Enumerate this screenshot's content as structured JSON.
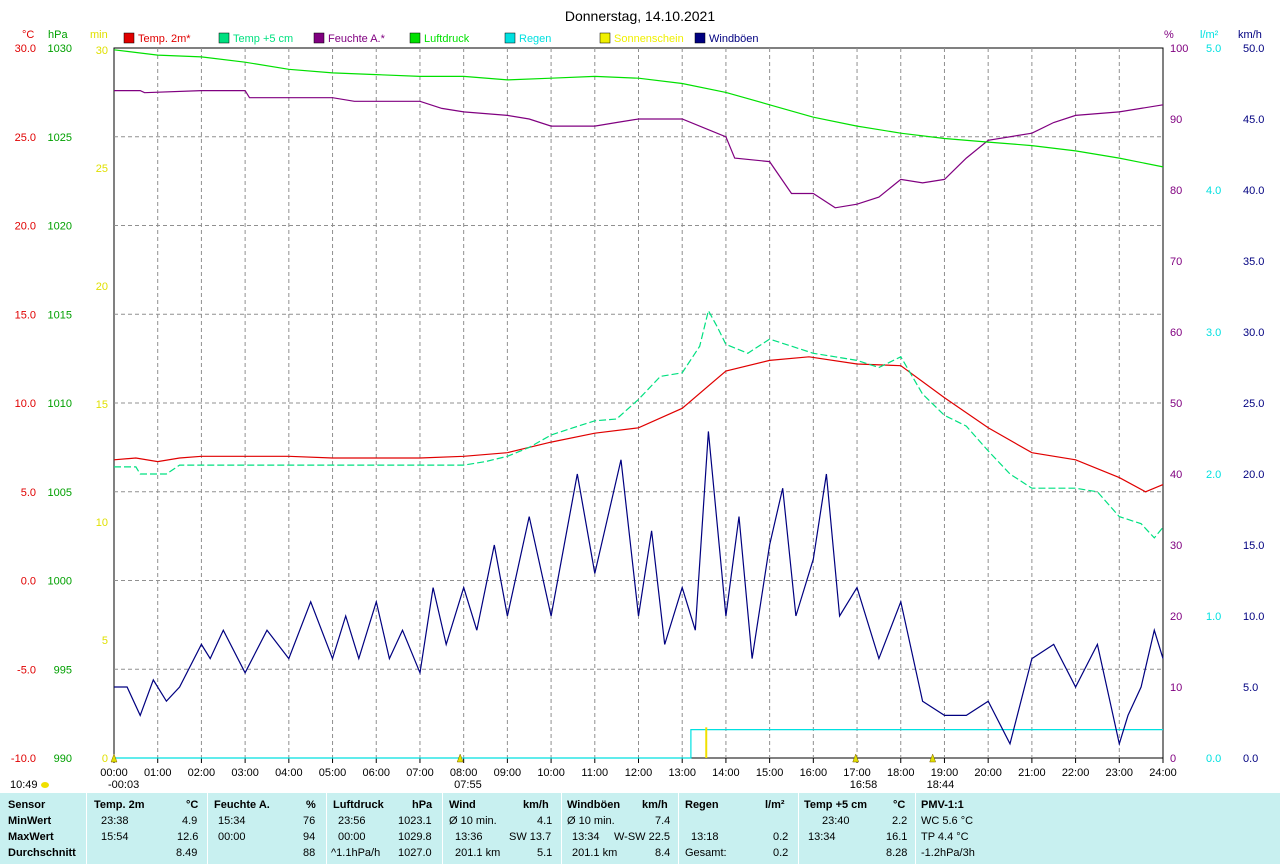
{
  "title": "Donnerstag, 14.10.2021",
  "legend": [
    {
      "label": "Temp. 2m*",
      "color": "#e00000"
    },
    {
      "label": "Temp +5 cm",
      "color": "#00e080"
    },
    {
      "label": "Feuchte A.*",
      "color": "#800080"
    },
    {
      "label": "Luftdruck",
      "color": "#00e000"
    },
    {
      "label": "Regen",
      "color": "#00e0e0"
    },
    {
      "label": "Sonnenschein",
      "color": "#f0f000"
    },
    {
      "label": "Windböen",
      "color": "#000080"
    }
  ],
  "axes": {
    "temp_unit": "°C",
    "pressure_unit": "hPa",
    "sun_unit": "min",
    "humidity_unit": "%",
    "rain_unit": "l/m²",
    "wind_unit": "km/h",
    "temp_ticks": [
      "30.0",
      "25.0",
      "20.0",
      "15.0",
      "10.0",
      "5.0",
      "0.0",
      "-5.0",
      "-10.0"
    ],
    "pressure_ticks": [
      "1030",
      "1025",
      "1020",
      "1015",
      "1010",
      "1005",
      "1000",
      "995",
      "990"
    ],
    "sun_ticks": [
      "30",
      "25",
      "20",
      "15",
      "10",
      "5",
      "0"
    ],
    "humidity_ticks": [
      "100",
      "90",
      "80",
      "70",
      "60",
      "50",
      "40",
      "30",
      "20",
      "10",
      "0"
    ],
    "rain_ticks": [
      "5.0",
      "4.0",
      "3.0",
      "2.0",
      "1.0",
      "0.0"
    ],
    "wind_ticks": [
      "50.0",
      "45.0",
      "40.0",
      "35.0",
      "30.0",
      "25.0",
      "20.0",
      "15.0",
      "10.0",
      "5.0",
      "0.0"
    ],
    "time_ticks": [
      "00:00",
      "01:00",
      "02:00",
      "03:00",
      "04:00",
      "05:00",
      "06:00",
      "07:00",
      "08:00",
      "09:00",
      "10:00",
      "11:00",
      "12:00",
      "13:00",
      "14:00",
      "15:00",
      "16:00",
      "17:00",
      "18:00",
      "19:00",
      "20:00",
      "21:00",
      "22:00",
      "23:00",
      "24:00"
    ]
  },
  "markers": [
    {
      "label": "-00:03",
      "hour": 0.0
    },
    {
      "label": "07:55",
      "hour": 7.92
    },
    {
      "label": "16:58",
      "hour": 16.97
    },
    {
      "label": "18:44",
      "hour": 18.73
    }
  ],
  "sunrise_label": "10:49",
  "chart_data": {
    "type": "line",
    "x_unit": "hour of day",
    "xlim": [
      0,
      24
    ],
    "series": [
      {
        "name": "Temp. 2m*",
        "axis": "temp",
        "points": [
          [
            0,
            6.8
          ],
          [
            0.5,
            6.9
          ],
          [
            1,
            6.7
          ],
          [
            1.5,
            6.9
          ],
          [
            2,
            7.0
          ],
          [
            4,
            7.0
          ],
          [
            5,
            6.9
          ],
          [
            6,
            6.9
          ],
          [
            7,
            6.9
          ],
          [
            8,
            7.0
          ],
          [
            9,
            7.2
          ],
          [
            10,
            7.8
          ],
          [
            11,
            8.3
          ],
          [
            12,
            8.6
          ],
          [
            13,
            9.7
          ],
          [
            14,
            11.8
          ],
          [
            15,
            12.4
          ],
          [
            15.9,
            12.6
          ],
          [
            17,
            12.2
          ],
          [
            18,
            12.1
          ],
          [
            19,
            10.3
          ],
          [
            20,
            8.6
          ],
          [
            21,
            7.2
          ],
          [
            22,
            6.8
          ],
          [
            23,
            5.8
          ],
          [
            23.6,
            5.0
          ],
          [
            24,
            5.4
          ]
        ]
      },
      {
        "name": "Temp +5 cm",
        "axis": "temp",
        "points": [
          [
            0,
            6.4
          ],
          [
            0.5,
            6.4
          ],
          [
            0.6,
            6.0
          ],
          [
            1.2,
            6.0
          ],
          [
            1.5,
            6.5
          ],
          [
            3,
            6.5
          ],
          [
            4,
            6.5
          ],
          [
            5,
            6.5
          ],
          [
            6,
            6.5
          ],
          [
            7,
            6.5
          ],
          [
            8,
            6.5
          ],
          [
            8.5,
            6.7
          ],
          [
            9,
            7.0
          ],
          [
            9.5,
            7.5
          ],
          [
            10,
            8.2
          ],
          [
            10.5,
            8.6
          ],
          [
            11,
            9.0
          ],
          [
            11.5,
            9.1
          ],
          [
            12,
            10.2
          ],
          [
            12.5,
            11.5
          ],
          [
            13,
            11.7
          ],
          [
            13.4,
            13.2
          ],
          [
            13.6,
            15.2
          ],
          [
            13.8,
            14.3
          ],
          [
            14,
            13.3
          ],
          [
            14.5,
            12.8
          ],
          [
            15,
            13.6
          ],
          [
            15.5,
            13.2
          ],
          [
            16,
            12.8
          ],
          [
            16.5,
            12.6
          ],
          [
            17,
            12.4
          ],
          [
            17.5,
            12.0
          ],
          [
            18,
            12.6
          ],
          [
            18.5,
            10.5
          ],
          [
            19,
            9.3
          ],
          [
            19.5,
            8.7
          ],
          [
            20,
            7.3
          ],
          [
            20.5,
            6.0
          ],
          [
            21,
            5.2
          ],
          [
            22,
            5.2
          ],
          [
            22.5,
            5.0
          ],
          [
            23,
            3.6
          ],
          [
            23.5,
            3.2
          ],
          [
            23.8,
            2.4
          ],
          [
            24,
            3.0
          ]
        ]
      },
      {
        "name": "Feuchte A.*",
        "axis": "humidity",
        "points": [
          [
            0,
            94
          ],
          [
            0.6,
            94
          ],
          [
            0.7,
            93.7
          ],
          [
            2,
            94
          ],
          [
            3,
            94
          ],
          [
            3.1,
            93
          ],
          [
            5,
            93
          ],
          [
            5.5,
            92.5
          ],
          [
            7,
            92.5
          ],
          [
            7.5,
            91.5
          ],
          [
            8,
            91
          ],
          [
            9,
            90.5
          ],
          [
            9.5,
            90
          ],
          [
            10,
            89
          ],
          [
            11,
            89
          ],
          [
            11.5,
            89.5
          ],
          [
            12,
            90
          ],
          [
            13,
            90
          ],
          [
            14,
            87.5
          ],
          [
            14.2,
            84.5
          ],
          [
            15,
            84
          ],
          [
            15.5,
            79.5
          ],
          [
            16,
            79.5
          ],
          [
            16.5,
            77.5
          ],
          [
            17,
            78
          ],
          [
            17.5,
            79
          ],
          [
            18,
            81.5
          ],
          [
            18.5,
            81
          ],
          [
            19,
            81.5
          ],
          [
            19.5,
            84.5
          ],
          [
            20,
            87
          ],
          [
            21,
            88
          ],
          [
            21.5,
            89.5
          ],
          [
            22,
            90.5
          ],
          [
            23,
            91
          ],
          [
            24,
            92
          ]
        ]
      },
      {
        "name": "Luftdruck",
        "axis": "pressure",
        "points": [
          [
            0,
            1029.9
          ],
          [
            1,
            1029.6
          ],
          [
            2,
            1029.5
          ],
          [
            3,
            1029.2
          ],
          [
            4,
            1028.8
          ],
          [
            5,
            1028.6
          ],
          [
            6,
            1028.5
          ],
          [
            7,
            1028.4
          ],
          [
            8,
            1028.4
          ],
          [
            9,
            1028.2
          ],
          [
            10,
            1028.3
          ],
          [
            11,
            1028.4
          ],
          [
            12,
            1028.3
          ],
          [
            13,
            1028.0
          ],
          [
            14,
            1027.5
          ],
          [
            15,
            1026.8
          ],
          [
            16,
            1026.1
          ],
          [
            17,
            1025.6
          ],
          [
            18,
            1025.2
          ],
          [
            19,
            1024.9
          ],
          [
            20,
            1024.7
          ],
          [
            21,
            1024.5
          ],
          [
            22,
            1024.2
          ],
          [
            23,
            1023.8
          ],
          [
            24,
            1023.3
          ]
        ]
      },
      {
        "name": "Regen",
        "axis": "rain",
        "points": [
          [
            0,
            0
          ],
          [
            13.2,
            0
          ],
          [
            13.2,
            0.2
          ],
          [
            24,
            0.2
          ]
        ]
      },
      {
        "name": "Sonnenschein",
        "axis": "sun",
        "bars": [
          [
            13.55,
            1.3
          ]
        ]
      },
      {
        "name": "Windböen",
        "axis": "wind",
        "points": [
          [
            0,
            5
          ],
          [
            0.3,
            5
          ],
          [
            0.6,
            3
          ],
          [
            0.9,
            5.5
          ],
          [
            1.2,
            4
          ],
          [
            1.5,
            5
          ],
          [
            2,
            8
          ],
          [
            2.2,
            7
          ],
          [
            2.5,
            9
          ],
          [
            3,
            6
          ],
          [
            3.5,
            9
          ],
          [
            4,
            7
          ],
          [
            4.5,
            11
          ],
          [
            5,
            7
          ],
          [
            5.3,
            10
          ],
          [
            5.6,
            7
          ],
          [
            6,
            11
          ],
          [
            6.3,
            7
          ],
          [
            6.6,
            9
          ],
          [
            7,
            6
          ],
          [
            7.3,
            12
          ],
          [
            7.6,
            8
          ],
          [
            8,
            12
          ],
          [
            8.3,
            9
          ],
          [
            8.7,
            15
          ],
          [
            9,
            10
          ],
          [
            9.5,
            17
          ],
          [
            10,
            10
          ],
          [
            10.3,
            15
          ],
          [
            10.6,
            20
          ],
          [
            11,
            13
          ],
          [
            11.3,
            17
          ],
          [
            11.6,
            21
          ],
          [
            12,
            10
          ],
          [
            12.3,
            16
          ],
          [
            12.6,
            8
          ],
          [
            13,
            12
          ],
          [
            13.3,
            9
          ],
          [
            13.6,
            23
          ],
          [
            14,
            10
          ],
          [
            14.3,
            17
          ],
          [
            14.6,
            7
          ],
          [
            15,
            15
          ],
          [
            15.3,
            19
          ],
          [
            15.6,
            10
          ],
          [
            16,
            14
          ],
          [
            16.3,
            20
          ],
          [
            16.6,
            10
          ],
          [
            17,
            12
          ],
          [
            17.5,
            7
          ],
          [
            18,
            11
          ],
          [
            18.5,
            4
          ],
          [
            19,
            3
          ],
          [
            19.5,
            3
          ],
          [
            20,
            4
          ],
          [
            20.5,
            1
          ],
          [
            21,
            7
          ],
          [
            21.5,
            8
          ],
          [
            22,
            5
          ],
          [
            22.5,
            8
          ],
          [
            23,
            1
          ],
          [
            23.2,
            3
          ],
          [
            23.5,
            5
          ],
          [
            23.8,
            9
          ],
          [
            24,
            7
          ]
        ]
      }
    ]
  },
  "stats": {
    "headers": {
      "sensor": "Sensor",
      "temp": "Temp. 2m",
      "temp_unit": "°C",
      "hum": "Feuchte A.",
      "hum_unit": "%",
      "press": "Luftdruck",
      "press_unit": "hPa",
      "wind": "Wind",
      "wind_unit": "km/h",
      "gust": "Windböen",
      "gust_unit": "km/h",
      "rain": "Regen",
      "rain_unit": "l/m²",
      "t5": "Temp +5 cm",
      "t5_unit": "°C",
      "pmv": "PMV-1:1"
    },
    "rows": {
      "min": {
        "label": "MinWert",
        "temp_time": "23:38",
        "temp": "4.9",
        "hum_time": "15:34",
        "hum": "76",
        "press_time": "23:56",
        "press": "1023.1",
        "wind_label": "Ø 10 min.",
        "wind": "4.1",
        "gust_label": "Ø 10 min.",
        "gust": "7.4",
        "rain_time": "",
        "rain": "",
        "t5_time": "23:40",
        "t5": "2.2",
        "pmv": "WC 5.6 °C"
      },
      "max": {
        "label": "MaxWert",
        "temp_time": "15:54",
        "temp": "12.6",
        "hum_time": "00:00",
        "hum": "94",
        "press_time": "00:00",
        "press": "1029.8",
        "wind_label": "13:36",
        "wind_dir": "SW 13.7",
        "gust_label": "13:34",
        "gust_dir": "W-SW 22.5",
        "rain_time": "13:18",
        "rain": "0.2",
        "t5_time": "13:34",
        "t5": "16.1",
        "pmv": "TP 4.4 °C"
      },
      "avg": {
        "label": "Durchschnitt",
        "temp": "8.49",
        "hum": "88",
        "press_trend": "^1.1hPa/h",
        "press": "1027.0",
        "wind_run": "201.1 km",
        "wind": "5.1",
        "gust_run": "201.1 km",
        "gust": "8.4",
        "rain_label": "Gesamt:",
        "rain": "0.2",
        "t5": "8.28",
        "pmv": "-1.2hPa/3h"
      }
    }
  }
}
